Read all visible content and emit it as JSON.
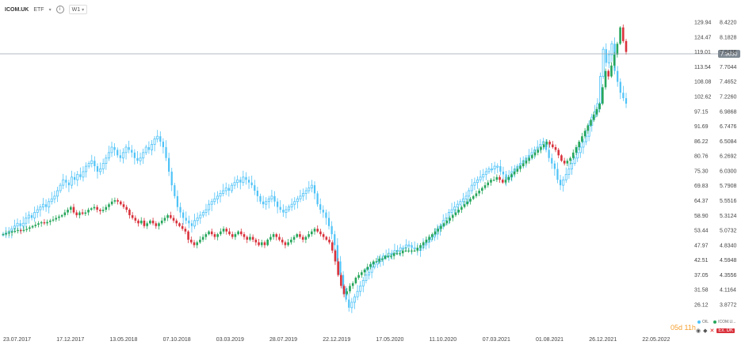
{
  "header": {
    "symbol": "ICOM.UK",
    "type_label": "ETF",
    "timeframe": "W1"
  },
  "chart_data": {
    "type": "candlestick",
    "y_ticks_primary": [
      129.94,
      124.47,
      119.01,
      113.54,
      108.08,
      102.62,
      97.15,
      91.69,
      86.22,
      80.76,
      75.3,
      69.83,
      64.37,
      58.9,
      53.44,
      47.97,
      42.51,
      37.05,
      31.58,
      26.12
    ],
    "y_ticks_secondary": [
      "8.4220",
      "8.1828",
      "7.9436",
      "7.7044",
      "7.4652",
      "7.2260",
      "6.9868",
      "6.7476",
      "6.5084",
      "6.2692",
      "6.0300",
      "5.7908",
      "5.5516",
      "5.3124",
      "5.0732",
      "4.8340",
      "4.5948",
      "4.3556",
      "4.1164",
      "3.8772"
    ],
    "x_ticks": [
      "23.07.2017",
      "17.12.2017",
      "13.05.2018",
      "07.10.2018",
      "03.03.2019",
      "28.07.2019",
      "22.12.2019",
      "17.05.2020",
      "11.10.2020",
      "07.03.2021",
      "01.08.2021",
      "26.12.2021",
      "22.05.2022"
    ],
    "current_price_label": "7.9050",
    "series": [
      {
        "name": "OIL",
        "color": "#4fc3f7",
        "x_start": "23.07.2017",
        "closes": [
          52,
          52.5,
          53,
          54,
          55,
          56,
          55,
          56,
          58,
          59,
          58,
          60,
          61,
          62,
          63,
          62,
          64,
          65,
          66,
          68,
          70,
          72,
          71,
          70,
          73,
          72,
          74,
          73,
          75,
          77,
          78,
          79,
          77,
          75,
          76,
          78,
          80,
          82,
          84,
          83,
          81,
          80,
          82,
          84,
          83,
          82,
          80,
          79,
          80,
          82,
          84,
          83,
          85,
          87,
          88,
          86,
          84,
          80,
          75,
          70,
          66,
          62,
          60,
          58,
          57,
          56,
          55,
          57,
          58,
          59,
          60,
          61,
          63,
          64,
          65,
          66,
          67,
          68,
          69,
          68,
          70,
          71,
          72,
          71,
          73,
          72,
          71,
          70,
          68,
          66,
          64,
          63,
          64,
          65,
          66,
          64,
          62,
          61,
          60,
          61,
          62,
          63,
          64,
          65,
          66,
          67,
          68,
          69,
          70,
          67,
          63,
          61,
          60,
          58,
          55,
          52,
          48,
          42,
          37,
          32,
          28,
          25,
          27,
          29,
          31,
          33,
          35,
          37,
          38,
          40,
          41,
          42,
          43,
          44,
          44,
          45,
          45,
          46,
          46,
          47,
          47,
          48,
          48,
          47,
          47,
          46,
          47,
          48,
          49,
          50,
          51,
          52,
          54,
          55,
          57,
          58,
          60,
          61,
          62,
          63,
          64,
          65,
          66,
          68,
          70,
          71,
          72,
          73,
          74,
          75,
          76,
          76,
          77,
          77,
          75,
          74,
          72,
          73,
          75,
          76,
          77,
          78,
          79,
          80,
          81,
          82,
          83,
          84,
          85,
          86,
          83,
          80,
          78,
          76,
          72,
          70,
          72,
          74,
          76,
          78,
          80,
          82,
          84,
          86,
          88,
          92,
          95,
          97,
          100,
          110,
          120,
          115,
          118,
          122,
          112,
          108,
          104,
          102,
          100
        ]
      },
      {
        "name": "ICOM.UK",
        "color_up": "#26a65b",
        "color_down": "#d9323c",
        "x_start": "23.07.2017",
        "closes": [
          52,
          52.3,
          52.6,
          53,
          53.2,
          53.5,
          53.2,
          53.6,
          54,
          54.5,
          55,
          55.5,
          56,
          56.4,
          56,
          56.5,
          57,
          57.4,
          58,
          58.5,
          59,
          60,
          61,
          62,
          60,
          59,
          60,
          59.5,
          60,
          61,
          61.5,
          62,
          61,
          60.5,
          61,
          62,
          63,
          64,
          64.5,
          64,
          63,
          62,
          61,
          59,
          58,
          57,
          56,
          57,
          55,
          56,
          57,
          56,
          55,
          56,
          57,
          58,
          59,
          58,
          57,
          56,
          55,
          54,
          53,
          50,
          49,
          48,
          49,
          50,
          51,
          52,
          53,
          52,
          51,
          52,
          53,
          54,
          53,
          52,
          51,
          52,
          53,
          52,
          51,
          50,
          51,
          50,
          49,
          48,
          49,
          48,
          50,
          51,
          52,
          51,
          50,
          49,
          48,
          49,
          50,
          51,
          52,
          51,
          50,
          51,
          52,
          53,
          54,
          53,
          52,
          51,
          50,
          49,
          46,
          42,
          37,
          33,
          30,
          31,
          33,
          34,
          36,
          37,
          38,
          39,
          40,
          41,
          42,
          42,
          43,
          43,
          44,
          44,
          44,
          45,
          45,
          45,
          46,
          46,
          46,
          46,
          46,
          47,
          48,
          49,
          50,
          51,
          52,
          53,
          54,
          55,
          56,
          57,
          58,
          59,
          60,
          61,
          62,
          63,
          64,
          65,
          66,
          67,
          68,
          69,
          70,
          71,
          72,
          72,
          73,
          72,
          71,
          72,
          73,
          74,
          75,
          76,
          77,
          78,
          79,
          80,
          81,
          82,
          83,
          84,
          85,
          86,
          85,
          84,
          83,
          81,
          79,
          78,
          79,
          80,
          82,
          84,
          86,
          88,
          90,
          92,
          94,
          96,
          98,
          100,
          106,
          112,
          110,
          114,
          118,
          122,
          128,
          123,
          119
        ]
      }
    ]
  },
  "countdown": "05d 11h",
  "legend": {
    "items": [
      {
        "label": "OIL",
        "color": "#4fc3f7"
      },
      {
        "label": "ICOM.U...",
        "color": "#26a65b"
      }
    ],
    "badge": "Ex. DK"
  }
}
